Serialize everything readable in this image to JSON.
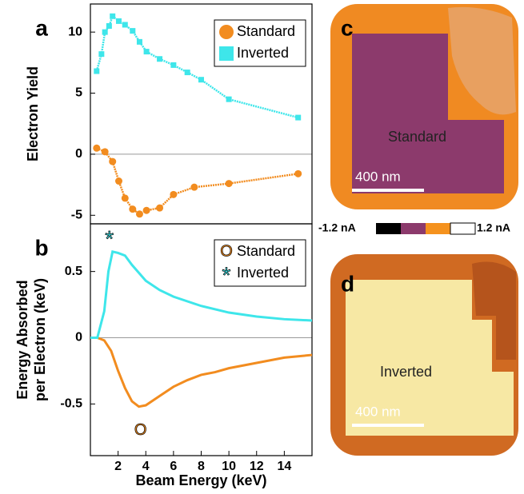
{
  "chart_data": [
    {
      "type": "line",
      "panel": "a",
      "y_label": "Electron Yield",
      "xlim": [
        0,
        16
      ],
      "ylim": [
        -5.7,
        12.3
      ],
      "yticks": [
        -5,
        0,
        5,
        10
      ],
      "legend": "upper right",
      "series": [
        {
          "name": "Standard",
          "color": "#f28c1f",
          "marker": "circle",
          "x": [
            0.45,
            1.05,
            1.6,
            2.05,
            2.5,
            3.05,
            3.55,
            4.05,
            5,
            6,
            7.5,
            10,
            15
          ],
          "values": [
            0.5,
            0.2,
            -0.6,
            -2.2,
            -3.6,
            -4.5,
            -4.9,
            -4.6,
            -4.4,
            -3.3,
            -2.7,
            -2.4,
            -1.6
          ]
        },
        {
          "name": "Inverted",
          "color": "#3ee6ea",
          "marker": "square",
          "x": [
            0.45,
            0.8,
            1.05,
            1.35,
            1.6,
            2.05,
            2.5,
            3.05,
            3.55,
            4.05,
            5,
            6,
            7,
            8,
            10,
            15
          ],
          "values": [
            6.8,
            8.2,
            10,
            10.5,
            11.3,
            10.9,
            10.6,
            10.1,
            9.2,
            8.4,
            7.8,
            7.3,
            6.7,
            6.1,
            4.5,
            3.0
          ]
        }
      ]
    },
    {
      "type": "curve",
      "panel": "b",
      "y_label": [
        "Energy Absorbed",
        "per Electron (keV)"
      ],
      "x_label": "Beam Energy (keV)",
      "xlim": [
        0,
        16
      ],
      "xticks": [
        2,
        4,
        6,
        8,
        10,
        12,
        14
      ],
      "ylim": [
        -0.89,
        0.86
      ],
      "yticks": [
        -0.5,
        0,
        0.5
      ],
      "legend": "upper right",
      "series": [
        {
          "name": "Standard",
          "color": "#f28c1f",
          "symbol": "O",
          "x": [
            0,
            0.5,
            1,
            1.5,
            2,
            2.5,
            3,
            3.5,
            4,
            5,
            6,
            7,
            8,
            9,
            10,
            12,
            14,
            16
          ],
          "values": [
            0,
            0,
            -0.02,
            -0.1,
            -0.25,
            -0.38,
            -0.48,
            -0.52,
            -0.51,
            -0.44,
            -0.37,
            -0.32,
            -0.28,
            -0.26,
            -0.23,
            -0.19,
            -0.15,
            -0.13
          ]
        },
        {
          "name": "Inverted",
          "color": "#3ee6ea",
          "symbol": "*",
          "x": [
            0,
            0.5,
            1,
            1.3,
            1.6,
            2,
            2.5,
            3,
            4,
            5,
            6,
            8,
            10,
            12,
            14,
            16
          ],
          "values": [
            0,
            0,
            0.2,
            0.5,
            0.65,
            0.64,
            0.62,
            0.55,
            0.43,
            0.36,
            0.31,
            0.24,
            0.19,
            0.16,
            0.14,
            0.13
          ]
        }
      ]
    }
  ],
  "images": {
    "c": {
      "panel": "c",
      "label": "Standard",
      "scale": "400 nm"
    },
    "d": {
      "panel": "d",
      "label": "Inverted",
      "scale": "400 nm"
    },
    "colorbar": {
      "min": "-1.2 nA",
      "max": "1.2 nA"
    }
  }
}
